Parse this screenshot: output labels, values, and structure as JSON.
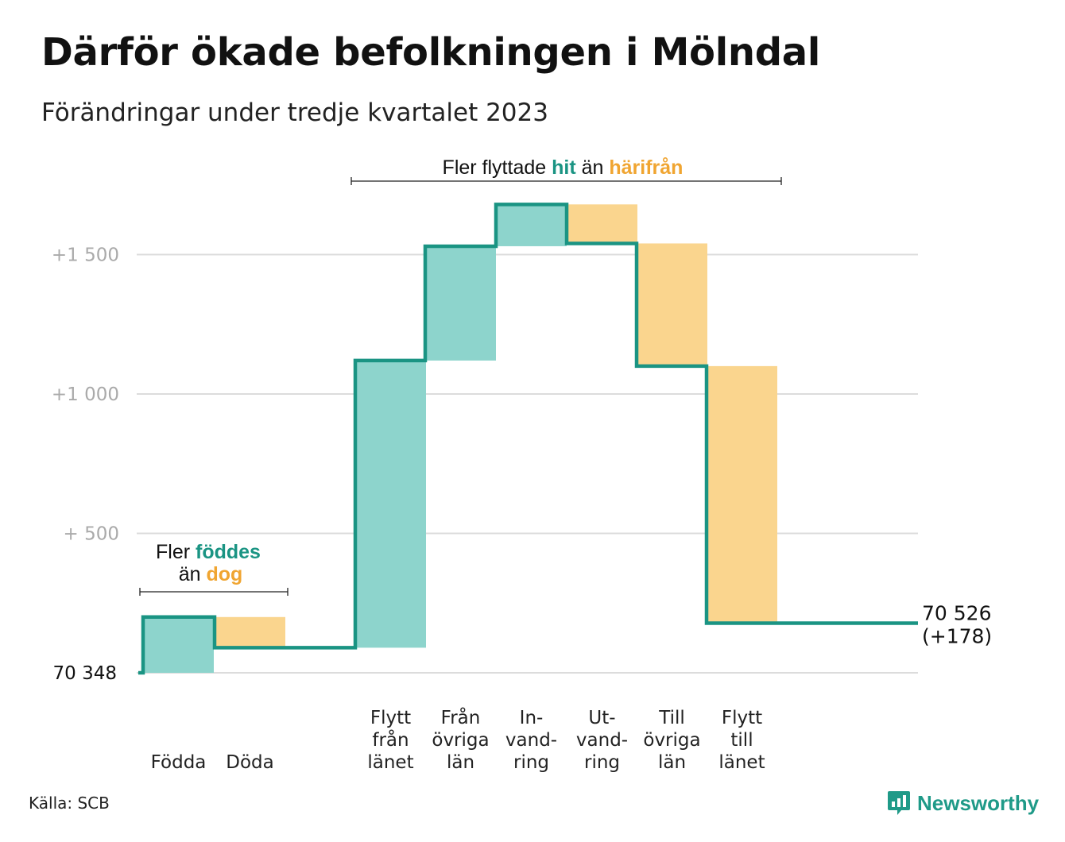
{
  "title": "Därför ökade befolkningen i Mölndal",
  "subtitle": "Förändringar under tredje kvartalet 2023",
  "source": "Källa: SCB",
  "brand": {
    "name": "Newsworthy",
    "icon": "bar-chart-icon"
  },
  "colors": {
    "increase": "#8dd4cc",
    "decrease": "#fad58e",
    "line": "#1a9483",
    "grid": "#dcdcdc",
    "tick": "#aaaaaa",
    "accent_increase": "#1a9483",
    "accent_decrease": "#f0a531"
  },
  "chart_data": {
    "type": "waterfall",
    "baseline": 70348,
    "baseline_label": "70  348",
    "final_label_value": "70 526",
    "final_label_change": "(+178)",
    "ylim": [
      0,
      1500
    ],
    "yticks": [
      {
        "value": 500,
        "label": "+  500"
      },
      {
        "value": 1000,
        "label": "+1  000"
      },
      {
        "value": 1500,
        "label": "+1  500"
      }
    ],
    "steps": [
      {
        "label_lines": [
          "Födda"
        ],
        "change": 200
      },
      {
        "label_lines": [
          "Döda"
        ],
        "change": -110
      },
      {
        "label_lines": [
          "Flytt",
          "från",
          "länet"
        ],
        "change": 1030
      },
      {
        "label_lines": [
          "Från",
          "övriga",
          "län"
        ],
        "change": 410
      },
      {
        "label_lines": [
          "In-",
          "vand-",
          "ring"
        ],
        "change": 150
      },
      {
        "label_lines": [
          "Ut-",
          "vand-",
          "ring"
        ],
        "change": -140
      },
      {
        "label_lines": [
          "Till",
          "övriga",
          "län"
        ],
        "change": -440
      },
      {
        "label_lines": [
          "Flytt",
          "till",
          "länet"
        ],
        "change": -922
      }
    ],
    "annotations": [
      {
        "parts": [
          {
            "text": "Fler ",
            "style": "plain"
          },
          {
            "text": "föddes",
            "style": "increase"
          }
        ],
        "parts2": [
          {
            "text": "än ",
            "style": "plain"
          },
          {
            "text": "dog",
            "style": "decrease"
          }
        ]
      },
      {
        "parts": [
          {
            "text": "Fler flyttade ",
            "style": "plain"
          },
          {
            "text": "hit",
            "style": "increase"
          },
          {
            "text": " än ",
            "style": "plain"
          },
          {
            "text": "härifrån",
            "style": "decrease"
          }
        ]
      }
    ]
  }
}
